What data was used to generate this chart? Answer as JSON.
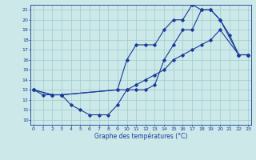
{
  "xlabel": "Graphe des températures (°C)",
  "x_ticks": [
    0,
    1,
    2,
    3,
    4,
    5,
    6,
    7,
    8,
    9,
    10,
    11,
    12,
    13,
    14,
    15,
    16,
    17,
    18,
    19,
    20,
    21,
    22,
    23
  ],
  "y_ticks": [
    10,
    11,
    12,
    13,
    14,
    15,
    16,
    17,
    18,
    19,
    20,
    21
  ],
  "xlim": [
    -0.3,
    23.3
  ],
  "ylim": [
    9.5,
    21.5
  ],
  "bg_color": "#cce8e8",
  "line_color": "#1a3a9a",
  "grid_color": "#99cccc",
  "line1": {
    "x": [
      0,
      1,
      2,
      3,
      4,
      5,
      6,
      7,
      8,
      9,
      10,
      11,
      12,
      13,
      14,
      15,
      16,
      17,
      18,
      19,
      20,
      21,
      22,
      23
    ],
    "y": [
      13,
      12.5,
      12.5,
      12.5,
      11.5,
      11,
      10.5,
      10.5,
      10.5,
      11.5,
      13,
      13,
      13,
      13.5,
      16,
      17.5,
      19,
      19,
      21,
      21,
      20,
      18.5,
      16.5,
      16.5
    ]
  },
  "line2": {
    "x": [
      0,
      2,
      3,
      9,
      10,
      11,
      12,
      13,
      14,
      15,
      16,
      17,
      18,
      19,
      20,
      22,
      23
    ],
    "y": [
      13,
      12.5,
      12.5,
      13,
      16,
      17.5,
      17.5,
      17.5,
      19,
      20,
      20,
      21.5,
      21,
      21,
      20,
      16.5,
      16.5
    ]
  },
  "line3": {
    "x": [
      0,
      2,
      3,
      9,
      10,
      11,
      12,
      13,
      14,
      15,
      16,
      17,
      18,
      19,
      20,
      22,
      23
    ],
    "y": [
      13,
      12.5,
      12.5,
      13,
      13,
      13.5,
      14,
      14.5,
      15,
      16,
      16.5,
      17,
      17.5,
      18,
      19,
      16.5,
      16.5
    ]
  }
}
